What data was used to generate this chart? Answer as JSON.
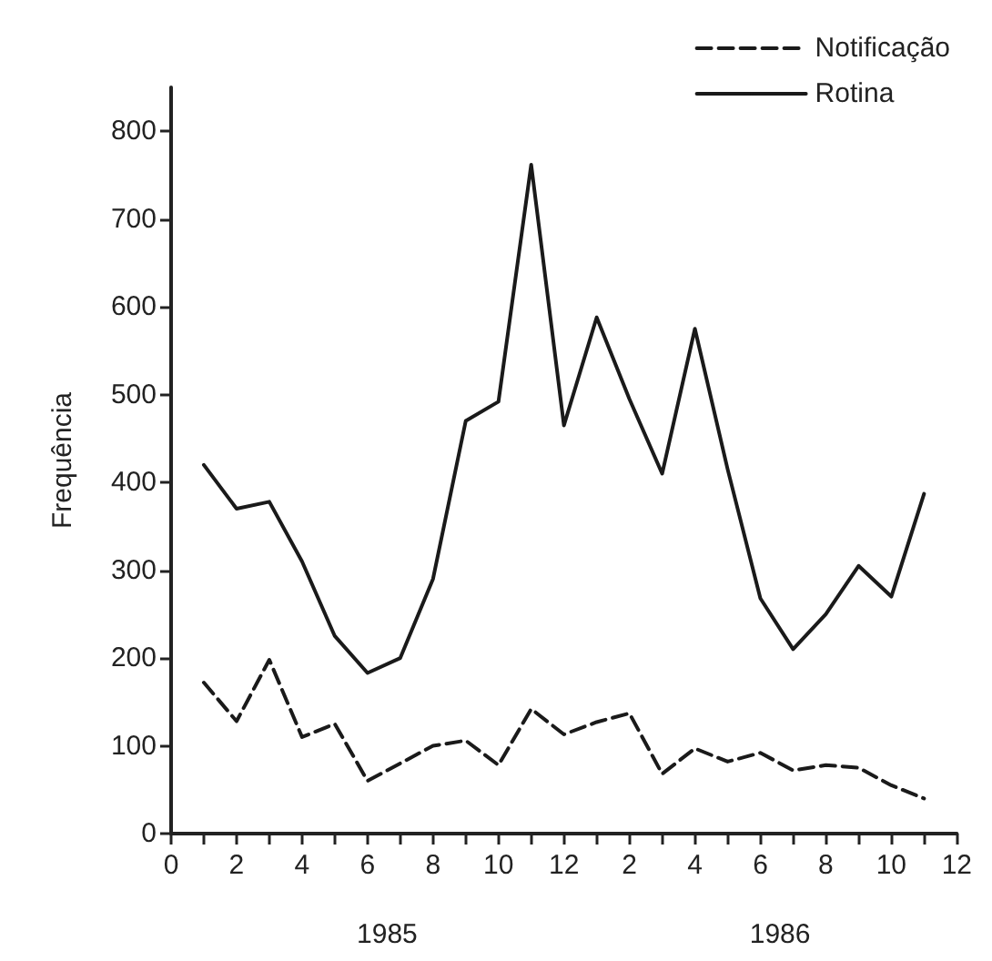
{
  "chart_data": {
    "type": "line",
    "ylabel": "Frequência",
    "annotations": [
      "1985",
      "1986"
    ],
    "x": [
      "1985-01",
      "1985-02",
      "1985-03",
      "1985-04",
      "1985-05",
      "1985-06",
      "1985-07",
      "1985-08",
      "1985-09",
      "1985-10",
      "1985-11",
      "1985-12",
      "1986-01",
      "1986-02",
      "1986-03",
      "1986-04",
      "1986-05",
      "1986-06",
      "1986-07",
      "1986-08",
      "1986-09",
      "1986-10",
      "1986-11"
    ],
    "series": [
      {
        "name": "Notificação",
        "color": "#1a1a1a",
        "line_style": "dashed",
        "values": [
          172,
          128,
          198,
          110,
          125,
          60,
          80,
          100,
          106,
          78,
          142,
          113,
          127,
          137,
          68,
          97,
          82,
          92,
          72,
          78,
          75,
          55,
          40
        ]
      },
      {
        "name": "Rotina",
        "color": "#1a1a1a",
        "line_style": "solid",
        "values": [
          420,
          370,
          378,
          310,
          225,
          183,
          200,
          290,
          470,
          492,
          762,
          465,
          588,
          495,
          410,
          575,
          415,
          268,
          210,
          250,
          305,
          270,
          387
        ]
      }
    ],
    "xlim": [
      "1984-12",
      "1986-12"
    ],
    "xticks": [
      {
        "value": "1984-12",
        "label": "0"
      },
      {
        "value": "1985-01",
        "label": null
      },
      {
        "value": "1985-02",
        "label": "2"
      },
      {
        "value": "1985-03",
        "label": null
      },
      {
        "value": "1985-04",
        "label": "4"
      },
      {
        "value": "1985-05",
        "label": null
      },
      {
        "value": "1985-06",
        "label": "6"
      },
      {
        "value": "1985-07",
        "label": null
      },
      {
        "value": "1985-08",
        "label": "8"
      },
      {
        "value": "1985-09",
        "label": null
      },
      {
        "value": "1985-10",
        "label": "10"
      },
      {
        "value": "1985-11",
        "label": null
      },
      {
        "value": "1985-12",
        "label": "12"
      },
      {
        "value": "1986-01",
        "label": null
      },
      {
        "value": "1986-02",
        "label": "2"
      },
      {
        "value": "1986-03",
        "label": null
      },
      {
        "value": "1986-04",
        "label": "4"
      },
      {
        "value": "1986-05",
        "label": null
      },
      {
        "value": "1986-06",
        "label": "6"
      },
      {
        "value": "1986-07",
        "label": null
      },
      {
        "value": "1986-08",
        "label": "8"
      },
      {
        "value": "1986-09",
        "label": null
      },
      {
        "value": "1986-10",
        "label": "10"
      },
      {
        "value": "1986-11",
        "label": null
      },
      {
        "value": "1986-12",
        "label": "12"
      }
    ],
    "ylim": [
      0,
      850
    ],
    "yticks": [
      0,
      100,
      200,
      300,
      400,
      500,
      600,
      700,
      800
    ],
    "grid": false,
    "legend": "top right",
    "marker": "none"
  }
}
